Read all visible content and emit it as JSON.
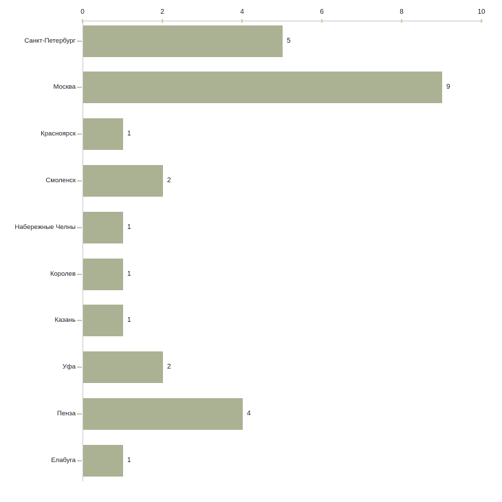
{
  "chart_data": {
    "type": "bar",
    "orientation": "horizontal",
    "title": "",
    "xlabel": "",
    "ylabel": "",
    "categories": [
      "Санкт-Петербург",
      "Москва",
      "Красноярск",
      "Смоленск",
      "Набережные Челны",
      "Королев",
      "Казань",
      "Уфа",
      "Пенза",
      "Елабуга"
    ],
    "values": [
      5,
      9,
      1,
      2,
      1,
      1,
      1,
      2,
      4,
      1
    ],
    "value_labels": [
      "5",
      "9",
      "1",
      "2",
      "1",
      "1",
      "1",
      "2",
      "4",
      "1"
    ],
    "x_axis": {
      "position": "top",
      "ticks": [
        "0",
        "2",
        "4",
        "6",
        "8",
        "10"
      ],
      "tick_values": [
        0,
        2,
        4,
        6,
        8,
        10
      ],
      "min": 0,
      "max": 10
    },
    "grid": false,
    "legend": null,
    "colors": {
      "bar": "#abb294",
      "axis_line": "#c8c8c8",
      "tick_mark": "#cbcb9b",
      "text": "#222222",
      "background": "#ffffff"
    }
  }
}
